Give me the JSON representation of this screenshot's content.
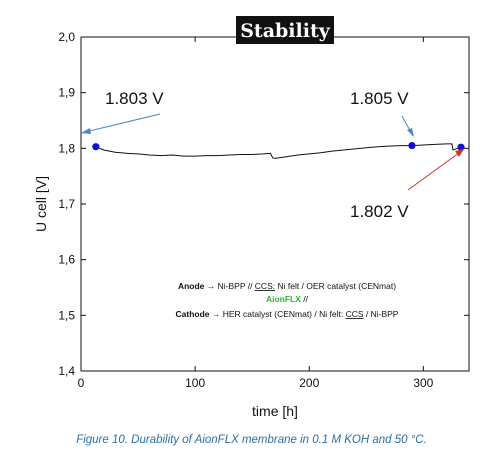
{
  "chart_data": {
    "type": "line",
    "title": "Stability",
    "xlabel": "time [h]",
    "ylabel": "U cell [V]",
    "xlim": [
      0,
      340
    ],
    "ylim": [
      1.4,
      2.0
    ],
    "x_ticks": [
      0,
      100,
      200,
      300
    ],
    "x_tick_labels": [
      "0",
      "100",
      "200",
      "300"
    ],
    "y_ticks": [
      1.4,
      1.5,
      1.6,
      1.7,
      1.8,
      1.9,
      2.0
    ],
    "y_tick_labels": [
      "1,4",
      "1,5",
      "1,6",
      "1,7",
      "1,8",
      "1,9",
      "2,0"
    ],
    "grid": false,
    "series": [
      {
        "color": "#111111",
        "x": [
          13,
          20,
          30,
          40,
          50,
          60,
          70,
          80,
          90,
          100,
          110,
          120,
          130,
          140,
          150,
          160,
          166,
          168,
          170,
          180,
          190,
          200,
          210,
          220,
          230,
          240,
          250,
          260,
          270,
          280,
          290,
          300,
          310,
          320,
          325,
          326,
          330,
          333
        ],
        "y": [
          1.803,
          1.797,
          1.793,
          1.791,
          1.79,
          1.788,
          1.787,
          1.788,
          1.786,
          1.786,
          1.787,
          1.787,
          1.788,
          1.789,
          1.789,
          1.79,
          1.791,
          1.783,
          1.782,
          1.785,
          1.788,
          1.79,
          1.792,
          1.795,
          1.797,
          1.799,
          1.801,
          1.803,
          1.804,
          1.805,
          1.805,
          1.806,
          1.807,
          1.808,
          1.808,
          1.797,
          1.8,
          1.802
        ]
      }
    ],
    "points": [
      {
        "x": 13,
        "y": 1.803,
        "color": "#1010d0"
      },
      {
        "x": 290,
        "y": 1.805,
        "color": "#1010d0"
      },
      {
        "x": 333,
        "y": 1.802,
        "color": "#1010d0"
      }
    ],
    "annotations": [
      {
        "text": "1.803 V"
      },
      {
        "text": "1.805 V"
      },
      {
        "text": "1.802 V"
      }
    ],
    "legend": {
      "line1": {
        "label": "Anode",
        "rest1": " → Ni-BPP  //  ",
        "ccs": "CCS:",
        "rest2": " Ni felt / OER catalyst (CENmat)"
      },
      "line2": {
        "membrane": "AionFLX",
        "rest": " //"
      },
      "line3": {
        "label": "Cathode",
        "rest1": " → HER catalyst (CENmat) / Ni felt: ",
        "ccs": "CCS",
        "rest2": " / Ni-BPP"
      }
    }
  },
  "caption": "Figure 10. Durability of AionFLX membrane in 0.1 M KOH and 50 °C."
}
